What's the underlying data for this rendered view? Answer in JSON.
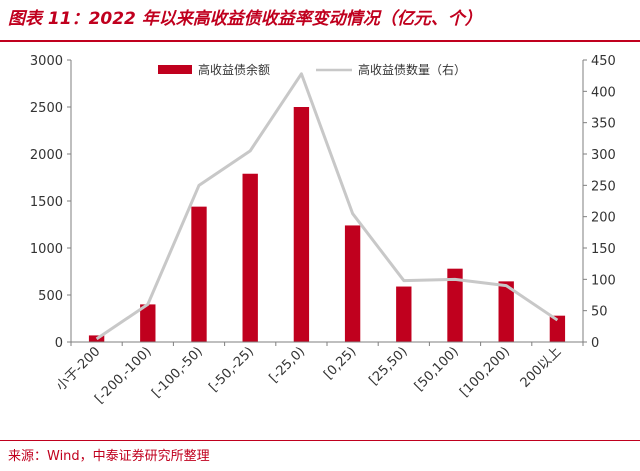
{
  "header": {
    "title": "图表 11：2022 年以来高收益债收益率变动情况（亿元、个）"
  },
  "footer": {
    "source": "来源：Wind，中泰证券研究所整理"
  },
  "colors": {
    "accent": "#c0001e",
    "bar": "#c0001e",
    "line": "#c8c8c8",
    "axis": "#7f7f7f"
  },
  "chart_data": {
    "type": "bar",
    "title": "",
    "xlabel": "",
    "ylabel": "",
    "categories": [
      "小于-200",
      "[-200,-100)",
      "[-100,-50)",
      "[-50,-25)",
      "[-25,0)",
      "[0,25)",
      "[25,50)",
      "[50,100)",
      "[100,200)",
      "200以上"
    ],
    "series": [
      {
        "name": "高收益债余额",
        "type": "bar",
        "axis": "left",
        "values": [
          70,
          400,
          1440,
          1790,
          2500,
          1240,
          590,
          780,
          645,
          280
        ]
      },
      {
        "name": "高收益债数量（右）",
        "type": "line",
        "axis": "right",
        "values": [
          5,
          60,
          250,
          305,
          428,
          205,
          98,
          100,
          90,
          35
        ]
      }
    ],
    "ylim": [
      0,
      3000
    ],
    "y_ticks": [
      "0",
      "500",
      "1000",
      "1500",
      "2000",
      "2500",
      "3000"
    ],
    "y2lim": [
      0,
      450
    ],
    "y2_ticks": [
      "0",
      "50",
      "100",
      "150",
      "200",
      "250",
      "300",
      "350",
      "400",
      "450"
    ],
    "legend_position": "top-center",
    "grid": false
  }
}
